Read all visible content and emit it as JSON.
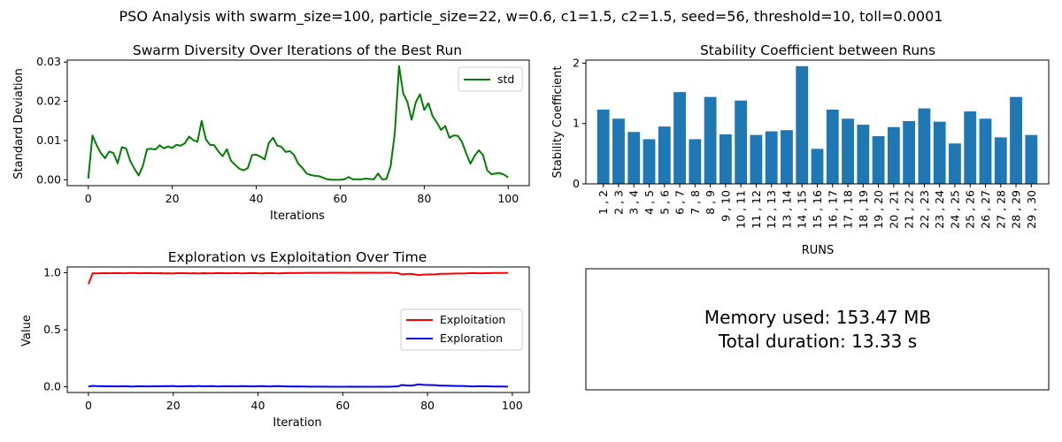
{
  "suptitle": "PSO Analysis with swarm_size=100, particle_size=22, w=0.6, c1=1.5, c2=1.5, seed=56, threshold=10, toll=0.0001",
  "info": {
    "memory": "Memory used: 153.47 MB",
    "duration": "Total duration: 13.33 s"
  },
  "chart_data": [
    {
      "type": "line",
      "title": "Swarm Diversity Over Iterations of the Best Run",
      "xlabel": "Iterations",
      "ylabel": "Standard Deviation",
      "xlim": [
        -5,
        105
      ],
      "ylim": [
        -0.0015,
        0.0305
      ],
      "xticks": [
        0,
        20,
        40,
        60,
        80,
        100
      ],
      "xtick_labels": [
        "0",
        "20",
        "40",
        "60",
        "80",
        "100"
      ],
      "yticks": [
        0.0,
        0.01,
        0.02,
        0.03
      ],
      "ytick_labels": [
        "0.00",
        "0.01",
        "0.02",
        "0.03"
      ],
      "legend_position": "top-right",
      "series": [
        {
          "name": "std",
          "color": "#008000",
          "x": [
            0,
            1,
            2,
            3,
            4,
            5,
            6,
            7,
            8,
            9,
            10,
            11,
            12,
            13,
            14,
            15,
            16,
            17,
            18,
            19,
            20,
            21,
            22,
            23,
            24,
            25,
            26,
            27,
            28,
            29,
            30,
            31,
            32,
            33,
            34,
            35,
            36,
            37,
            38,
            39,
            40,
            41,
            42,
            43,
            44,
            45,
            46,
            47,
            48,
            49,
            50,
            51,
            52,
            53,
            54,
            55,
            56,
            57,
            58,
            59,
            60,
            61,
            62,
            63,
            64,
            65,
            66,
            67,
            68,
            69,
            70,
            71,
            72,
            73,
            74,
            75,
            76,
            77,
            78,
            79,
            80,
            81,
            82,
            83,
            84,
            85,
            86,
            87,
            88,
            89,
            90,
            91,
            92,
            93,
            94,
            95,
            96,
            97,
            98,
            99,
            100
          ],
          "y": [
            0.0003,
            0.0113,
            0.0088,
            0.0068,
            0.0055,
            0.0072,
            0.0068,
            0.0042,
            0.0083,
            0.008,
            0.0048,
            0.0028,
            0.0011,
            0.0035,
            0.0078,
            0.0079,
            0.0077,
            0.0088,
            0.008,
            0.0085,
            0.0081,
            0.0089,
            0.0087,
            0.0093,
            0.011,
            0.0101,
            0.0097,
            0.015,
            0.0103,
            0.0089,
            0.0088,
            0.0072,
            0.006,
            0.0078,
            0.0048,
            0.0038,
            0.0028,
            0.0024,
            0.003,
            0.0063,
            0.0064,
            0.0059,
            0.0052,
            0.0094,
            0.0107,
            0.0087,
            0.0084,
            0.0071,
            0.0073,
            0.0063,
            0.0041,
            0.003,
            0.0016,
            0.0012,
            0.001,
            0.0009,
            0.0005,
            0.0001,
            0.0,
            0.0,
            0.0,
            0.0001,
            0.0007,
            0.0001,
            0.0001,
            0.0001,
            0.0003,
            0.0002,
            0.0001,
            0.0016,
            0.0001,
            0.0002,
            0.0035,
            0.012,
            0.029,
            0.022,
            0.0198,
            0.0153,
            0.0198,
            0.0218,
            0.0178,
            0.0195,
            0.0162,
            0.0146,
            0.0127,
            0.0137,
            0.0107,
            0.0113,
            0.0112,
            0.0096,
            0.0067,
            0.0041,
            0.0061,
            0.0075,
            0.0063,
            0.0024,
            0.0014,
            0.0016,
            0.0017,
            0.0013,
            0.0006
          ]
        }
      ]
    },
    {
      "type": "bar",
      "title": "Stability Coefficient between Runs",
      "xlabel": "RUNS",
      "ylabel": "Stability Coefficient",
      "ylim": [
        0,
        2.05
      ],
      "yticks": [
        0,
        1,
        2
      ],
      "ytick_labels": [
        "0",
        "1",
        "2"
      ],
      "color": "#1f77b4",
      "categories": [
        "1 , 2",
        "2 , 3",
        "3 , 4",
        "4 , 5",
        "5 , 6",
        "6 , 7",
        "7 , 8",
        "8 , 9",
        "9 , 10",
        "10 , 11",
        "11 , 12",
        "12 , 13",
        "13 , 14",
        "14 , 15",
        "15 , 16",
        "16 , 17",
        "17 , 18",
        "18 , 19",
        "19 , 20",
        "20 , 21",
        "21 , 22",
        "22 , 23",
        "23 , 24",
        "24 , 25",
        "25 , 26",
        "26 , 27",
        "27 , 28",
        "28 , 29",
        "29 , 30"
      ],
      "values": [
        1.23,
        1.08,
        0.86,
        0.74,
        0.95,
        1.52,
        0.74,
        1.44,
        0.82,
        1.38,
        0.81,
        0.87,
        0.89,
        1.95,
        0.58,
        1.23,
        1.08,
        0.98,
        0.79,
        0.94,
        1.04,
        1.25,
        1.03,
        0.67,
        1.2,
        1.08,
        0.77,
        1.44,
        0.81
      ]
    },
    {
      "type": "line",
      "title": "Exploration vs Exploitation Over Time",
      "xlabel": "Iteration",
      "ylabel": "Value",
      "xlim": [
        -5,
        104
      ],
      "ylim": [
        -0.05,
        1.05
      ],
      "xticks": [
        0,
        20,
        40,
        60,
        80,
        100
      ],
      "xtick_labels": [
        "0",
        "20",
        "40",
        "60",
        "80",
        "100"
      ],
      "yticks": [
        0.0,
        0.5,
        1.0
      ],
      "ytick_labels": [
        "0.0",
        "0.5",
        "1.0"
      ],
      "legend_position": "center-right",
      "series": [
        {
          "name": "Exploitation",
          "color": "#ff0000",
          "x": [
            0,
            1,
            2,
            3,
            4,
            5,
            6,
            7,
            8,
            9,
            10,
            11,
            12,
            13,
            14,
            15,
            16,
            17,
            18,
            19,
            20,
            21,
            22,
            23,
            24,
            25,
            26,
            27,
            28,
            29,
            30,
            31,
            32,
            33,
            34,
            35,
            36,
            37,
            38,
            39,
            40,
            41,
            42,
            43,
            44,
            45,
            46,
            47,
            48,
            49,
            50,
            51,
            52,
            53,
            54,
            55,
            56,
            57,
            58,
            59,
            60,
            61,
            62,
            63,
            64,
            65,
            66,
            67,
            68,
            69,
            70,
            71,
            72,
            73,
            74,
            75,
            76,
            77,
            78,
            79,
            80,
            81,
            82,
            83,
            84,
            85,
            86,
            87,
            88,
            89,
            90,
            91,
            92,
            93,
            94,
            95,
            96,
            97,
            98,
            99
          ],
          "y": [
            0.9,
            0.995,
            0.994,
            0.995,
            0.996,
            0.995,
            0.996,
            0.997,
            0.995,
            0.996,
            0.998,
            0.997,
            0.995,
            0.996,
            0.997,
            0.996,
            0.995,
            0.996,
            0.994,
            0.995,
            0.993,
            0.997,
            0.996,
            0.995,
            0.994,
            0.996,
            0.993,
            0.996,
            0.995,
            0.994,
            0.996,
            0.997,
            0.995,
            0.996,
            0.995,
            0.997,
            0.994,
            0.995,
            0.996,
            0.997,
            0.995,
            0.994,
            0.996,
            0.997,
            0.995,
            0.994,
            0.996,
            0.997,
            0.998,
            0.997,
            0.998,
            0.998,
            0.999,
            0.999,
            0.999,
            0.999,
            0.999,
            1.0,
            1.0,
            1.0,
            1.0,
            1.0,
            0.999,
            1.0,
            1.0,
            1.0,
            1.0,
            1.0,
            1.0,
            0.999,
            1.0,
            1.0,
            0.998,
            0.996,
            0.984,
            0.988,
            0.99,
            0.985,
            0.978,
            0.983,
            0.984,
            0.985,
            0.986,
            0.99,
            0.99,
            0.991,
            0.992,
            0.993,
            0.993,
            0.994,
            0.996,
            0.997,
            0.995,
            0.995,
            0.996,
            0.997,
            0.998,
            0.998,
            0.998,
            0.999
          ]
        },
        {
          "name": "Exploration",
          "color": "#0000ff",
          "x": [
            0,
            1,
            2,
            3,
            4,
            5,
            6,
            7,
            8,
            9,
            10,
            11,
            12,
            13,
            14,
            15,
            16,
            17,
            18,
            19,
            20,
            21,
            22,
            23,
            24,
            25,
            26,
            27,
            28,
            29,
            30,
            31,
            32,
            33,
            34,
            35,
            36,
            37,
            38,
            39,
            40,
            41,
            42,
            43,
            44,
            45,
            46,
            47,
            48,
            49,
            50,
            51,
            52,
            53,
            54,
            55,
            56,
            57,
            58,
            59,
            60,
            61,
            62,
            63,
            64,
            65,
            66,
            67,
            68,
            69,
            70,
            71,
            72,
            73,
            74,
            75,
            76,
            77,
            78,
            79,
            80,
            81,
            82,
            83,
            84,
            85,
            86,
            87,
            88,
            89,
            90,
            91,
            92,
            93,
            94,
            95,
            96,
            97,
            98,
            99
          ],
          "y": [
            0.002,
            0.008,
            0.006,
            0.005,
            0.004,
            0.005,
            0.004,
            0.003,
            0.005,
            0.004,
            0.002,
            0.003,
            0.005,
            0.004,
            0.003,
            0.004,
            0.005,
            0.004,
            0.006,
            0.005,
            0.007,
            0.003,
            0.004,
            0.005,
            0.006,
            0.004,
            0.007,
            0.004,
            0.005,
            0.006,
            0.004,
            0.003,
            0.005,
            0.004,
            0.005,
            0.003,
            0.006,
            0.005,
            0.004,
            0.003,
            0.005,
            0.006,
            0.004,
            0.003,
            0.005,
            0.006,
            0.004,
            0.003,
            0.002,
            0.003,
            0.002,
            0.002,
            0.001,
            0.001,
            0.001,
            0.001,
            0.001,
            0.0,
            0.0,
            0.0,
            0.0,
            0.0,
            0.001,
            0.0,
            0.0,
            0.0,
            0.0,
            0.0,
            0.0,
            0.001,
            0.0,
            0.0,
            0.002,
            0.004,
            0.016,
            0.012,
            0.01,
            0.015,
            0.022,
            0.017,
            0.016,
            0.015,
            0.014,
            0.01,
            0.01,
            0.009,
            0.008,
            0.007,
            0.007,
            0.006,
            0.004,
            0.003,
            0.005,
            0.005,
            0.004,
            0.003,
            0.002,
            0.002,
            0.002,
            0.001
          ]
        }
      ]
    }
  ]
}
